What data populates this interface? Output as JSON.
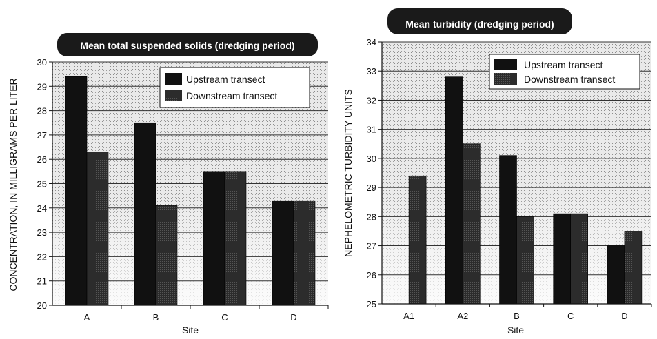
{
  "chart_data": [
    {
      "type": "bar",
      "title": "Mean total suspended solids (dredging period)",
      "xlabel": "Site",
      "ylabel": "CONCENTRATION, IN MILLIGRAMS PER LITER",
      "ylim": [
        20,
        30
      ],
      "yticks": [
        20,
        21,
        22,
        23,
        24,
        25,
        26,
        27,
        28,
        29,
        30
      ],
      "categories": [
        "A",
        "B",
        "C",
        "D"
      ],
      "series": [
        {
          "name": "Upstream transect",
          "values": [
            29.4,
            27.5,
            25.5,
            24.3
          ]
        },
        {
          "name": "Downstream transect",
          "values": [
            26.3,
            24.1,
            25.5,
            24.3
          ]
        }
      ],
      "legend_position": "top-right",
      "colors": {
        "upstream": "#111111",
        "downstream": "#2a2a2a",
        "title_bg": "#1a1a1a"
      }
    },
    {
      "type": "bar",
      "title": "Mean turbidity (dredging period)",
      "xlabel": "Site",
      "ylabel": "NEPHELOMETRIC TURBIDITY UNITS",
      "ylim": [
        25,
        34
      ],
      "yticks": [
        25,
        26,
        27,
        28,
        29,
        30,
        31,
        32,
        33,
        34
      ],
      "categories": [
        "A1",
        "A2",
        "B",
        "C",
        "D"
      ],
      "series": [
        {
          "name": "Upstream transect",
          "values": [
            null,
            32.8,
            30.1,
            28.1,
            27.0
          ]
        },
        {
          "name": "Downstream transect",
          "values": [
            29.4,
            30.5,
            28.0,
            28.1,
            27.5
          ]
        }
      ],
      "legend_position": "top-right",
      "colors": {
        "upstream": "#111111",
        "downstream": "#2a2a2a",
        "title_bg": "#1a1a1a"
      }
    }
  ]
}
